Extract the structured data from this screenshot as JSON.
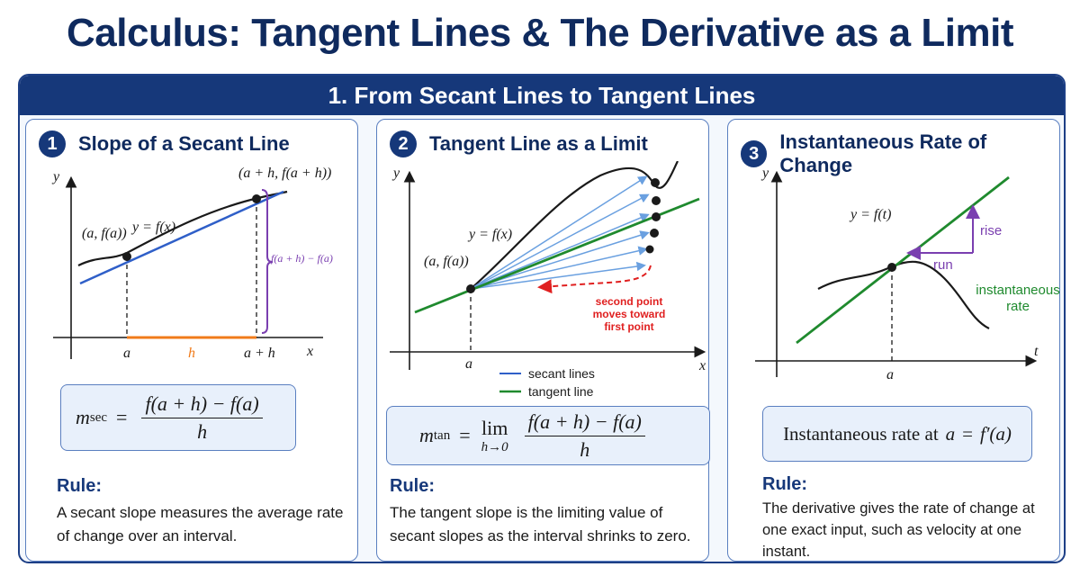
{
  "title": "Calculus: Tangent Lines & The Derivative as a Limit",
  "section_banner": "1. From Secant Lines to Tangent Lines",
  "panels": [
    {
      "number": "1",
      "title": "Slope of a Secant Line",
      "labels": {
        "y_axis": "y",
        "x_axis": "x",
        "curve": "y = f(x)",
        "point_a": "(a, f(a))",
        "point_ah": "(a + h, f(a + h))",
        "vertical_diff": "f(a + h) − f(a)",
        "tick_a": "a",
        "tick_h": "h",
        "tick_ah": "a + h"
      },
      "formula": {
        "lhs": "m",
        "sub": "sec",
        "eq": "=",
        "num": "f(a + h) − f(a)",
        "den": "h"
      },
      "rule_heading": "Rule:",
      "rule_text": "A secant slope measures the average rate of change over an interval."
    },
    {
      "number": "2",
      "title": "Tangent Line as a Limit",
      "labels": {
        "y_axis": "y",
        "x_axis": "x",
        "curve": "y = f(x)",
        "point_a": "(a, f(a))",
        "tick_a": "a",
        "annotation": [
          "second point",
          "moves toward",
          "first point"
        ],
        "legend_secant": "secant lines",
        "legend_tangent": "tangent line"
      },
      "formula": {
        "lhs": "m",
        "sub": "tan",
        "eq": "=",
        "lim": "lim",
        "lim_sub": "h→0",
        "num": "f(a + h) − f(a)",
        "den": "h"
      },
      "rule_heading": "Rule:",
      "rule_text": "The tangent slope is the limiting value of secant slopes as the interval shrinks to zero."
    },
    {
      "number": "3",
      "title": "Instantaneous Rate of Change",
      "labels": {
        "y_axis": "y",
        "x_axis": "t",
        "curve": "y = f(t)",
        "tick_a": "a",
        "rise": "rise",
        "run": "run",
        "inst_rate": [
          "instantaneous",
          "rate"
        ]
      },
      "formula": {
        "text": "Instantaneous rate at",
        "var": "a",
        "eq": "=",
        "rhs": "f′(a)"
      },
      "rule_heading": "Rule:",
      "rule_text": "The derivative gives the rate of change at one exact input, such as velocity at one instant."
    }
  ],
  "colors": {
    "navy": "#16387a",
    "secant_blue": "#2f5fc8",
    "light_blue": "#6aa0e0",
    "tangent_green": "#1f8a2e",
    "orange": "#f07b1a",
    "purple": "#7a3fb0",
    "red": "#e02020"
  }
}
